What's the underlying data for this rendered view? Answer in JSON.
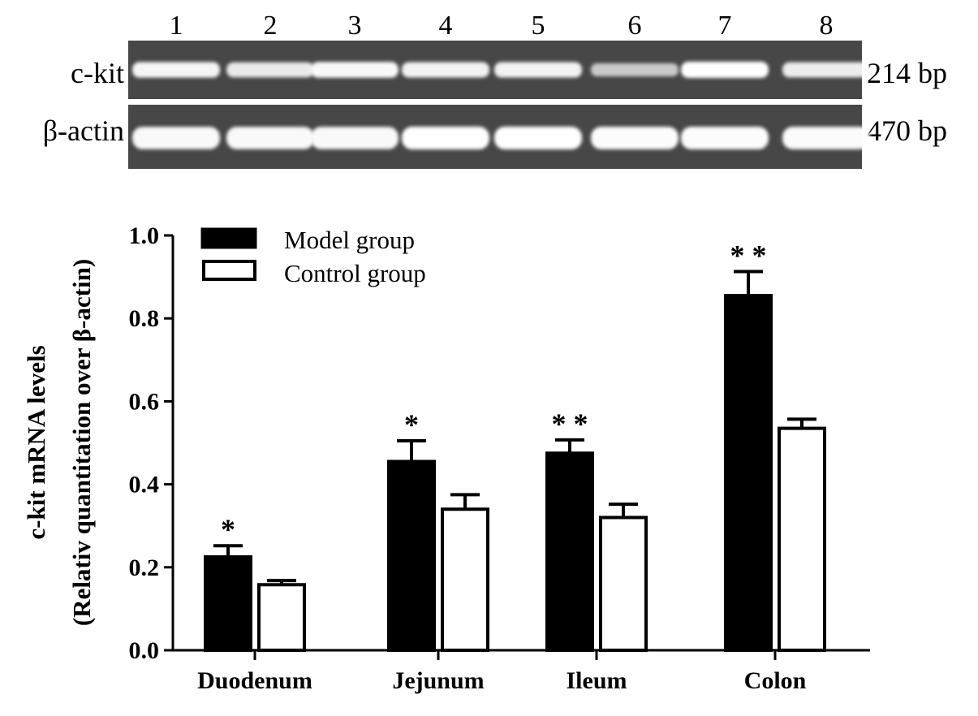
{
  "gel": {
    "lanes": [
      "1",
      "2",
      "3",
      "4",
      "5",
      "6",
      "7",
      "8"
    ],
    "rows": [
      {
        "label": "c-kit",
        "size": "214 bp",
        "intensity": [
          0.92,
          0.82,
          0.95,
          0.9,
          0.9,
          0.55,
          1.0,
          0.85
        ]
      },
      {
        "label": "β-actin",
        "size": "470 bp",
        "intensity": [
          0.95,
          0.95,
          0.95,
          1.0,
          1.0,
          0.98,
          0.98,
          0.97
        ]
      }
    ],
    "colors": {
      "background": "#474747",
      "band": "#ffffff"
    }
  },
  "chart_data": {
    "type": "bar",
    "ylabel_line1": "c-kit mRNA levels",
    "ylabel_line2": "(Relativ quantitation over β-actin)",
    "xlabel": "",
    "ylim": [
      0,
      1.0
    ],
    "yticks": [
      "0.0",
      "0.2",
      "0.4",
      "0.6",
      "0.8",
      "1.0"
    ],
    "categories": [
      "Duodenum",
      "Jejunum",
      "Ileum",
      "Colon"
    ],
    "series": [
      {
        "name": "Model group",
        "fill": "#000000",
        "values": [
          0.225,
          0.455,
          0.475,
          0.855
        ],
        "errors": [
          0.027,
          0.05,
          0.032,
          0.058
        ],
        "significance": [
          "*",
          "*",
          "* *",
          "* *"
        ]
      },
      {
        "name": "Control group",
        "fill": "#ffffff",
        "values": [
          0.158,
          0.34,
          0.32,
          0.535
        ],
        "errors": [
          0.01,
          0.035,
          0.032,
          0.022
        ],
        "significance": [
          "",
          "",
          "",
          ""
        ]
      }
    ],
    "legend_position": "top-left",
    "grid": false
  }
}
